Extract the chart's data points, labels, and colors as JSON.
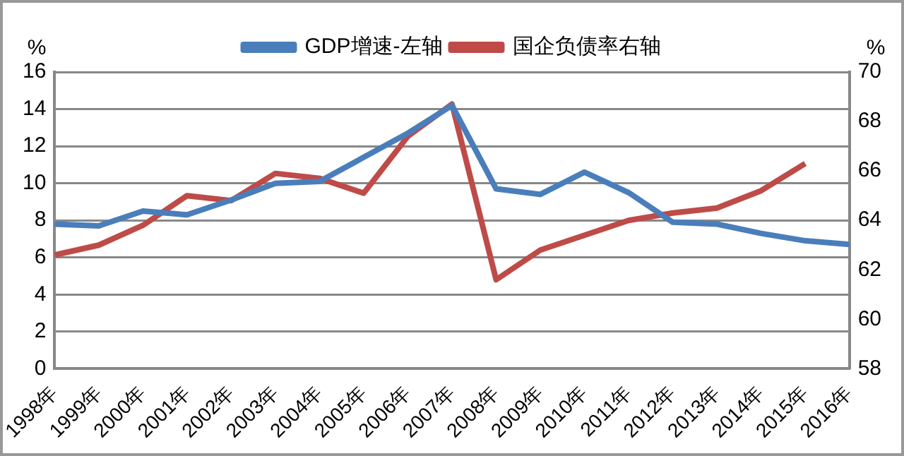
{
  "chart_data": {
    "type": "line",
    "ylabel": "%",
    "y2label": "%",
    "categories": [
      "1998年",
      "1999年",
      "2000年",
      "2001年",
      "2002年",
      "2003年",
      "2004年",
      "2005年",
      "2006年",
      "2007年",
      "2008年",
      "2009年",
      "2010年",
      "2011年",
      "2012年",
      "2013年",
      "2014年",
      "2015年",
      "2016年"
    ],
    "series": [
      {
        "name": "GDP增速-左轴",
        "color": "#4a7ebb",
        "values": [
          7.8,
          7.7,
          8.5,
          8.3,
          9.1,
          10.0,
          10.1,
          11.4,
          12.7,
          14.2,
          9.7,
          9.4,
          10.6,
          9.5,
          7.9,
          7.8,
          7.3,
          6.9,
          6.7
        ]
      },
      {
        "name": "国企负债率右轴",
        "color": "#be4b48",
        "axis": "y2",
        "values": [
          62.6,
          63.0,
          63.8,
          65.0,
          64.8,
          65.9,
          65.7,
          65.1,
          67.4,
          68.7,
          61.6,
          62.8,
          63.4,
          64.0,
          64.3,
          64.5,
          65.2,
          66.3,
          null
        ]
      }
    ],
    "ylim": [
      0,
      16
    ],
    "yticks": [
      0,
      2,
      4,
      6,
      8,
      10,
      12,
      14,
      16
    ],
    "y2lim": [
      58,
      70
    ],
    "y2ticks": [
      58,
      60,
      62,
      64,
      66,
      68,
      70
    ],
    "grid": "y",
    "legend": "top",
    "marker": "none",
    "line_style": "solid"
  }
}
